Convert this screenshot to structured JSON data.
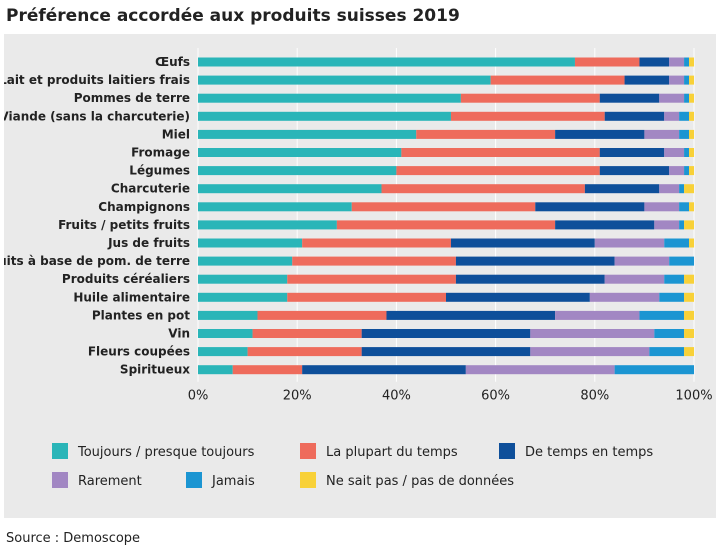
{
  "title": "Préférence accordée aux produits suisses 2019",
  "source": "Source : Demoscope",
  "chart_data": {
    "type": "bar",
    "orientation": "horizontal",
    "stacked": true,
    "title": "Préférence accordée aux produits suisses 2019",
    "xlabel": "",
    "ylabel": "",
    "xlim": [
      0,
      100
    ],
    "grid": true,
    "legend_position": "bottom",
    "x_ticks": [
      "0%",
      "20%",
      "40%",
      "60%",
      "80%",
      "100%"
    ],
    "categories": [
      "Œufs",
      "Lait et produits laitiers frais",
      "Pommes de terre",
      "Viande (sans la charcuterie)",
      "Miel",
      "Fromage",
      "Légumes",
      "Charcuterie",
      "Champignons",
      "Fruits / petits fruits",
      "Jus de fruits",
      "Produits à base de pom. de terre",
      "Produits céréaliers",
      "Huile alimentaire",
      "Plantes en pot",
      "Vin",
      "Fleurs coupées",
      "Spiritueux"
    ],
    "series": [
      {
        "name": "Toujours / presque toujours",
        "color": "#2ab5b8",
        "values": [
          76,
          59,
          53,
          51,
          44,
          41,
          40,
          37,
          31,
          28,
          21,
          19,
          18,
          18,
          12,
          11,
          10,
          7
        ]
      },
      {
        "name": "La plupart du temps",
        "color": "#ee6b5c",
        "values": [
          13,
          27,
          28,
          31,
          28,
          40,
          41,
          41,
          37,
          44,
          30,
          33,
          34,
          32,
          26,
          22,
          23,
          14
        ]
      },
      {
        "name": "De temps en temps",
        "color": "#0e4f9a",
        "values": [
          6,
          9,
          12,
          12,
          18,
          13,
          14,
          15,
          22,
          20,
          29,
          32,
          30,
          29,
          34,
          34,
          34,
          33
        ]
      },
      {
        "name": "Rarement",
        "color": "#a287c3",
        "values": [
          3,
          3,
          5,
          3,
          7,
          4,
          3,
          4,
          7,
          5,
          14,
          11,
          12,
          14,
          17,
          25,
          24,
          30
        ]
      },
      {
        "name": "Jamais",
        "color": "#1b95d2",
        "values": [
          1,
          1,
          1,
          2,
          2,
          1,
          1,
          1,
          2,
          1,
          5,
          5,
          4,
          5,
          9,
          6,
          7,
          16
        ]
      },
      {
        "name": "Ne sait pas / pas de données",
        "color": "#f8d138",
        "values": [
          1,
          1,
          1,
          1,
          1,
          1,
          1,
          2,
          1,
          2,
          1,
          0,
          2,
          2,
          2,
          2,
          2,
          0
        ]
      }
    ]
  }
}
